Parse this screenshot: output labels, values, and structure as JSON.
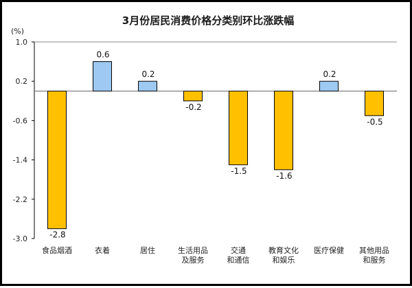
{
  "chart_data": {
    "type": "bar",
    "title": "3月份居民消费价格分类别环比涨跌幅",
    "ylabel": "(%)",
    "ylim": [
      -3.0,
      1.0
    ],
    "yticks": [
      "1.0",
      "0.2",
      "-0.6",
      "-1.4",
      "-2.2",
      "-3.0"
    ],
    "yticks_values": [
      1.0,
      0.2,
      -0.6,
      -1.4,
      -2.2,
      -3.0
    ],
    "categories": [
      [
        "食品烟酒"
      ],
      [
        "衣着"
      ],
      [
        "居住"
      ],
      [
        "生活用品",
        "及服务"
      ],
      [
        "交通",
        "和通信"
      ],
      [
        "教育文化",
        "和娱乐"
      ],
      [
        "医疗保健"
      ],
      [
        "其他用品",
        "和服务"
      ]
    ],
    "values": [
      -2.8,
      0.6,
      0.2,
      -0.2,
      -1.5,
      -1.6,
      0.2,
      -0.5
    ],
    "data_labels": [
      "-2.8",
      "0.6",
      "0.2",
      "-0.2",
      "-1.5",
      "-1.6",
      "0.2",
      "-0.5"
    ],
    "colors": {
      "positive": "#9dc9f2",
      "negative": "#ffc000",
      "outline": "#000000",
      "axis": "#000000"
    },
    "grid": false
  }
}
